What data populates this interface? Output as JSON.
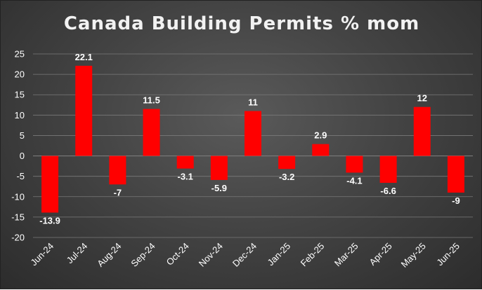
{
  "title": "Canada Building Permits % mom",
  "chart_data": {
    "type": "bar",
    "title": "Canada Building Permits % mom",
    "xlabel": "",
    "ylabel": "",
    "categories": [
      "Jun-24",
      "Jul-24",
      "Aug-24",
      "Sep-24",
      "Oct-24",
      "Nov-24",
      "Dec-24",
      "Jan-25",
      "Feb-25",
      "Mar-25",
      "Apr-25",
      "May-25",
      "Jun-25"
    ],
    "values": [
      -13.9,
      22.1,
      -7,
      11.5,
      -3.1,
      -5.9,
      11,
      -3.2,
      2.9,
      -4.1,
      -6.6,
      12,
      -9
    ],
    "data_labels": [
      "-13.9",
      "22.1",
      "-7",
      "11.5",
      "-3.1",
      "-5.9",
      "11",
      "-3.2",
      "2.9",
      "-4.1",
      "-6.6",
      "12",
      "-9"
    ],
    "yticks": [
      25,
      20,
      15,
      10,
      5,
      0,
      -5,
      -10,
      -15,
      -20
    ],
    "ylim": [
      -20,
      25
    ],
    "grid": true,
    "legend": false,
    "bar_color": "#ff0000",
    "grid_color": "#7a7a7a"
  }
}
